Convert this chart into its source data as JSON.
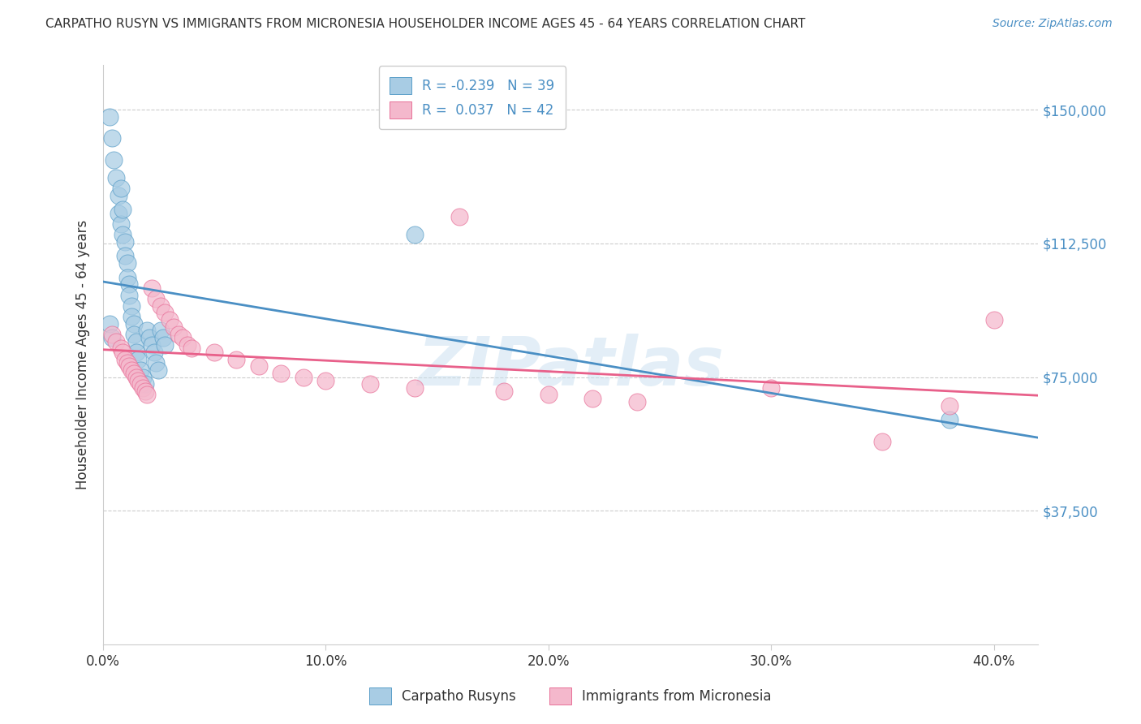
{
  "title": "CARPATHO RUSYN VS IMMIGRANTS FROM MICRONESIA HOUSEHOLDER INCOME AGES 45 - 64 YEARS CORRELATION CHART",
  "source": "Source: ZipAtlas.com",
  "ylabel": "Householder Income Ages 45 - 64 years",
  "xlabel_ticks": [
    "0.0%",
    "10.0%",
    "20.0%",
    "30.0%",
    "40.0%"
  ],
  "xlabel_vals": [
    0.0,
    0.1,
    0.2,
    0.3,
    0.4
  ],
  "ytick_labels": [
    "$37,500",
    "$75,000",
    "$112,500",
    "$150,000"
  ],
  "ytick_vals": [
    37500,
    75000,
    112500,
    150000
  ],
  "ylim_max": 162500,
  "xlim_max": 0.42,
  "r_blue": -0.239,
  "n_blue": 39,
  "r_pink": 0.037,
  "n_pink": 42,
  "legend_label_blue": "Carpatho Rusyns",
  "legend_label_pink": "Immigrants from Micronesia",
  "blue_fill": "#a8cce4",
  "pink_fill": "#f4b8cc",
  "blue_edge": "#5a9ec8",
  "pink_edge": "#e87098",
  "blue_line": "#4a8fc4",
  "pink_line": "#e8608a",
  "watermark_color": "#c8dff0",
  "title_color": "#333333",
  "source_color": "#4a8fc4",
  "grid_color": "#cccccc",
  "blue_x": [
    0.003,
    0.004,
    0.005,
    0.006,
    0.007,
    0.007,
    0.008,
    0.008,
    0.009,
    0.009,
    0.01,
    0.01,
    0.011,
    0.011,
    0.012,
    0.012,
    0.013,
    0.013,
    0.014,
    0.014,
    0.015,
    0.015,
    0.016,
    0.017,
    0.018,
    0.019,
    0.02,
    0.021,
    0.022,
    0.023,
    0.024,
    0.025,
    0.026,
    0.027,
    0.028,
    0.14,
    0.003,
    0.004,
    0.38
  ],
  "blue_y": [
    148000,
    142000,
    136000,
    131000,
    126000,
    121000,
    118000,
    128000,
    115000,
    122000,
    113000,
    109000,
    107000,
    103000,
    101000,
    98000,
    95000,
    92000,
    90000,
    87000,
    85000,
    82000,
    80000,
    77000,
    75000,
    73000,
    88000,
    86000,
    84000,
    82000,
    79000,
    77000,
    88000,
    86000,
    84000,
    115000,
    90000,
    86000,
    63000
  ],
  "pink_x": [
    0.004,
    0.006,
    0.008,
    0.009,
    0.01,
    0.011,
    0.012,
    0.013,
    0.014,
    0.015,
    0.016,
    0.017,
    0.018,
    0.019,
    0.02,
    0.022,
    0.024,
    0.026,
    0.028,
    0.03,
    0.032,
    0.034,
    0.036,
    0.038,
    0.04,
    0.05,
    0.06,
    0.07,
    0.08,
    0.09,
    0.1,
    0.12,
    0.14,
    0.16,
    0.18,
    0.2,
    0.22,
    0.24,
    0.3,
    0.35,
    0.38,
    0.4
  ],
  "pink_y": [
    87000,
    85000,
    83000,
    82000,
    80000,
    79000,
    78000,
    77000,
    76000,
    75000,
    74000,
    73000,
    72000,
    71000,
    70000,
    100000,
    97000,
    95000,
    93000,
    91000,
    89000,
    87000,
    86000,
    84000,
    83000,
    82000,
    80000,
    78000,
    76000,
    75000,
    74000,
    73000,
    72000,
    120000,
    71000,
    70000,
    69000,
    68000,
    72000,
    57000,
    67000,
    91000
  ]
}
